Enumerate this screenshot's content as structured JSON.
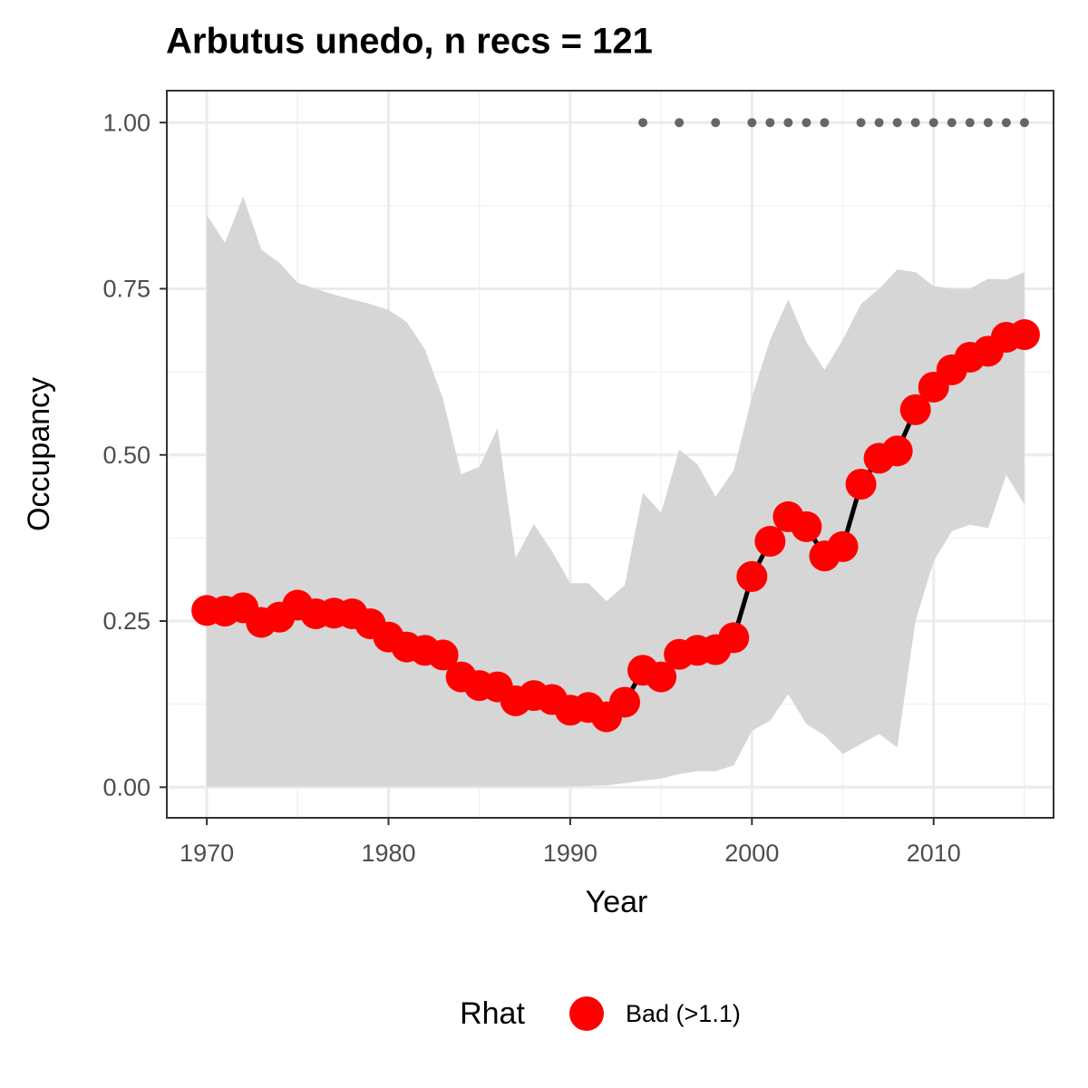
{
  "chart_data": {
    "type": "line",
    "title": "Arbutus unedo, n recs = 121",
    "x_label": "Year",
    "y_label": "Occupancy",
    "x": [
      1970,
      1971,
      1972,
      1973,
      1974,
      1975,
      1976,
      1977,
      1978,
      1979,
      1980,
      1981,
      1982,
      1983,
      1984,
      1985,
      1986,
      1987,
      1988,
      1989,
      1990,
      1991,
      1992,
      1993,
      1994,
      1995,
      1996,
      1997,
      1998,
      1999,
      2000,
      2001,
      2002,
      2003,
      2004,
      2005,
      2006,
      2007,
      2008,
      2009,
      2010,
      2011,
      2012,
      2013,
      2014,
      2015
    ],
    "series": [
      {
        "name": "Bad (>1.1)",
        "color": "#ff0000",
        "line_color": "#000000",
        "values": [
          0.266,
          0.265,
          0.27,
          0.248,
          0.256,
          0.274,
          0.261,
          0.262,
          0.261,
          0.246,
          0.226,
          0.211,
          0.206,
          0.199,
          0.166,
          0.153,
          0.151,
          0.13,
          0.138,
          0.132,
          0.116,
          0.12,
          0.106,
          0.128,
          0.176,
          0.166,
          0.2,
          0.206,
          0.207,
          0.225,
          0.317,
          0.37,
          0.407,
          0.392,
          0.348,
          0.362,
          0.456,
          0.495,
          0.506,
          0.568,
          0.602,
          0.628,
          0.647,
          0.656,
          0.677,
          0.681
        ]
      }
    ],
    "ribbon": {
      "color": "#d6d6d6",
      "lower": [
        0.001,
        0.001,
        0.001,
        0.001,
        0.001,
        0.001,
        0.001,
        0.001,
        0.001,
        0.001,
        0.001,
        0.001,
        0.001,
        0.001,
        0.001,
        0.001,
        0.001,
        0.001,
        0.001,
        0.001,
        0.001,
        0.002,
        0.003,
        0.006,
        0.01,
        0.013,
        0.02,
        0.024,
        0.024,
        0.033,
        0.085,
        0.1,
        0.14,
        0.095,
        0.078,
        0.05,
        0.065,
        0.08,
        0.06,
        0.25,
        0.34,
        0.385,
        0.395,
        0.39,
        0.47,
        0.425
      ],
      "upper": [
        0.861,
        0.819,
        0.889,
        0.809,
        0.789,
        0.759,
        0.75,
        0.741,
        0.734,
        0.727,
        0.718,
        0.7,
        0.659,
        0.584,
        0.471,
        0.482,
        0.54,
        0.345,
        0.396,
        0.355,
        0.307,
        0.307,
        0.28,
        0.304,
        0.443,
        0.413,
        0.508,
        0.486,
        0.437,
        0.477,
        0.587,
        0.673,
        0.734,
        0.67,
        0.628,
        0.673,
        0.727,
        0.75,
        0.779,
        0.775,
        0.754,
        0.75,
        0.75,
        0.765,
        0.764,
        0.775
      ]
    },
    "records": {
      "color": "#666666",
      "x": [
        1994,
        1996,
        1998,
        2000,
        2001,
        2002,
        2003,
        2004,
        2006,
        2007,
        2008,
        2009,
        2010,
        2011,
        2012,
        2013,
        2014,
        2015
      ],
      "values": [
        1,
        1,
        1,
        1,
        1,
        1,
        1,
        1,
        1,
        1,
        1,
        1,
        1,
        1,
        1,
        1,
        1,
        1
      ]
    },
    "legend_title": "Rhat",
    "legend": "bottom",
    "xlim": [
      1967.8,
      2016.6
    ],
    "ylim": [
      -0.046,
      1.048
    ],
    "xticks": [
      1970,
      1980,
      1990,
      2000,
      2010
    ],
    "yticks": [
      {
        "value": 0,
        "label": "0.00"
      },
      {
        "value": 0.25,
        "label": "0.25"
      },
      {
        "value": 0.5,
        "label": "0.50"
      },
      {
        "value": 0.75,
        "label": "0.75"
      },
      {
        "value": 1,
        "label": "1.00"
      }
    ],
    "grid": true
  }
}
